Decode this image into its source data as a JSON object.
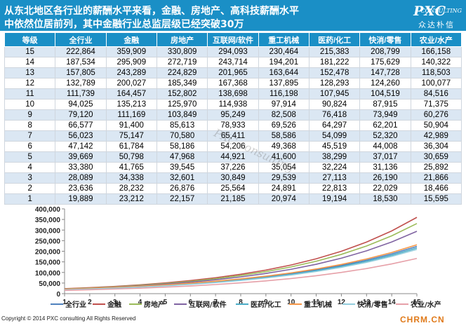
{
  "header": {
    "title_line1": "从东北地区各行业的薪酬水平来看，金融、房地产、高科技薪酬水平",
    "title_line2": "中依然位居前列，其中金融行业总监层级已经突破30万",
    "logo_main": "PXC",
    "logo_sub": "CONSULTING",
    "logo_cn": "众达朴信",
    "colors": {
      "header_bg": "#1a8fc6",
      "row_alt": "#dbe7f3"
    }
  },
  "table": {
    "columns": [
      "等级",
      "全行业",
      "金融",
      "房地产",
      "互联网/软件",
      "重工机械",
      "医药/化工",
      "快消/零售",
      "农业/水产"
    ],
    "rows": [
      [
        "15",
        "222,864",
        "359,909",
        "330,809",
        "294,093",
        "230,464",
        "215,383",
        "208,799",
        "166,158"
      ],
      [
        "14",
        "187,534",
        "295,909",
        "272,719",
        "243,714",
        "194,201",
        "181,222",
        "175,629",
        "140,322"
      ],
      [
        "13",
        "157,805",
        "243,289",
        "224,829",
        "201,965",
        "163,644",
        "152,478",
        "147,728",
        "118,503"
      ],
      [
        "12",
        "132,789",
        "200,027",
        "185,349",
        "167,368",
        "137,895",
        "128,293",
        "124,260",
        "100,077"
      ],
      [
        "11",
        "111,739",
        "164,457",
        "152,802",
        "138,698",
        "116,198",
        "107,945",
        "104,519",
        "84,516"
      ],
      [
        "10",
        "94,025",
        "135,213",
        "125,970",
        "114,938",
        "97,914",
        "90,824",
        "87,915",
        "71,375"
      ],
      [
        "9",
        "79,120",
        "111,169",
        "103,849",
        "95,249",
        "82,508",
        "76,418",
        "73,949",
        "60,276"
      ],
      [
        "8",
        "66,577",
        "91,400",
        "85,613",
        "78,933",
        "69,526",
        "64,297",
        "62,201",
        "50,904"
      ],
      [
        "7",
        "56,023",
        "75,147",
        "70,580",
        "65,411",
        "58,586",
        "54,099",
        "52,320",
        "42,989"
      ],
      [
        "6",
        "47,142",
        "61,784",
        "58,186",
        "54,206",
        "49,368",
        "45,519",
        "44,008",
        "36,304"
      ],
      [
        "5",
        "39,669",
        "50,798",
        "47,968",
        "44,921",
        "41,600",
        "38,299",
        "37,017",
        "30,659"
      ],
      [
        "4",
        "33,380",
        "41,765",
        "39,545",
        "37,226",
        "35,054",
        "32,224",
        "31,136",
        "25,892"
      ],
      [
        "3",
        "28,089",
        "34,338",
        "32,601",
        "30,849",
        "29,539",
        "27,113",
        "26,190",
        "21,866"
      ],
      [
        "2",
        "23,636",
        "28,232",
        "26,876",
        "25,564",
        "24,891",
        "22,813",
        "22,029",
        "18,466"
      ],
      [
        "1",
        "19,889",
        "23,212",
        "22,157",
        "21,185",
        "20,974",
        "19,194",
        "18,530",
        "15,595"
      ]
    ]
  },
  "chart_data": {
    "type": "line",
    "x": [
      1,
      2,
      3,
      4,
      5,
      6,
      7,
      8,
      9,
      10,
      11,
      12,
      13,
      14,
      15
    ],
    "ylim": [
      0,
      400000
    ],
    "yticks": [
      "0",
      "50,000",
      "100,000",
      "150,000",
      "200,000",
      "250,000",
      "300,000",
      "350,000",
      "400,000"
    ],
    "xticks": [
      "1",
      "2",
      "3",
      "4",
      "5",
      "6",
      "7",
      "8",
      "9",
      "10",
      "11",
      "12",
      "13",
      "14",
      "15"
    ],
    "legend_position": "bottom",
    "series": [
      {
        "name": "全行业",
        "color": "#4f81bd",
        "values": [
          19889,
          23636,
          28089,
          33380,
          39669,
          47142,
          56023,
          66577,
          79120,
          94025,
          111739,
          132789,
          157805,
          187534,
          222864
        ]
      },
      {
        "name": "金融",
        "color": "#c0504d",
        "values": [
          23212,
          28232,
          34338,
          41765,
          50798,
          61784,
          75147,
          91400,
          111169,
          135213,
          164457,
          200027,
          243289,
          295909,
          359909
        ]
      },
      {
        "name": "房地产",
        "color": "#9bbb59",
        "values": [
          22157,
          26876,
          32601,
          39545,
          47968,
          58186,
          70580,
          85613,
          103849,
          125970,
          152802,
          185349,
          224829,
          272719,
          330809
        ]
      },
      {
        "name": "互联网/软件",
        "color": "#8064a2",
        "values": [
          21185,
          25564,
          30849,
          37226,
          44921,
          54206,
          65411,
          78933,
          95249,
          114938,
          138698,
          167368,
          201965,
          243714,
          294093
        ]
      },
      {
        "name": "医药/化工",
        "color": "#4bacc6",
        "values": [
          19194,
          22813,
          27113,
          32224,
          38299,
          45519,
          54099,
          64297,
          76418,
          90824,
          107945,
          128293,
          152478,
          181222,
          215383
        ]
      },
      {
        "name": "重工机械",
        "color": "#f79646",
        "values": [
          20974,
          24891,
          29539,
          35054,
          41600,
          49368,
          58586,
          69526,
          82508,
          97914,
          116198,
          137895,
          163644,
          194201,
          230464
        ]
      },
      {
        "name": "快消/零售",
        "color": "#93cddd",
        "values": [
          18530,
          22029,
          26190,
          31136,
          37017,
          44008,
          52320,
          62201,
          73949,
          87915,
          104519,
          124260,
          147728,
          175629,
          208799
        ]
      },
      {
        "name": "农业/水产",
        "color": "#e6a0a8",
        "values": [
          15595,
          18466,
          21866,
          25892,
          30659,
          36304,
          42989,
          50904,
          60276,
          71375,
          84516,
          100077,
          118503,
          140322,
          166158
        ]
      }
    ]
  },
  "footer": {
    "copyright": "Copyright © 2014 PXC consulting All Rights Reserved",
    "site": "CHRM.CN"
  },
  "watermark": "PXC consulting"
}
